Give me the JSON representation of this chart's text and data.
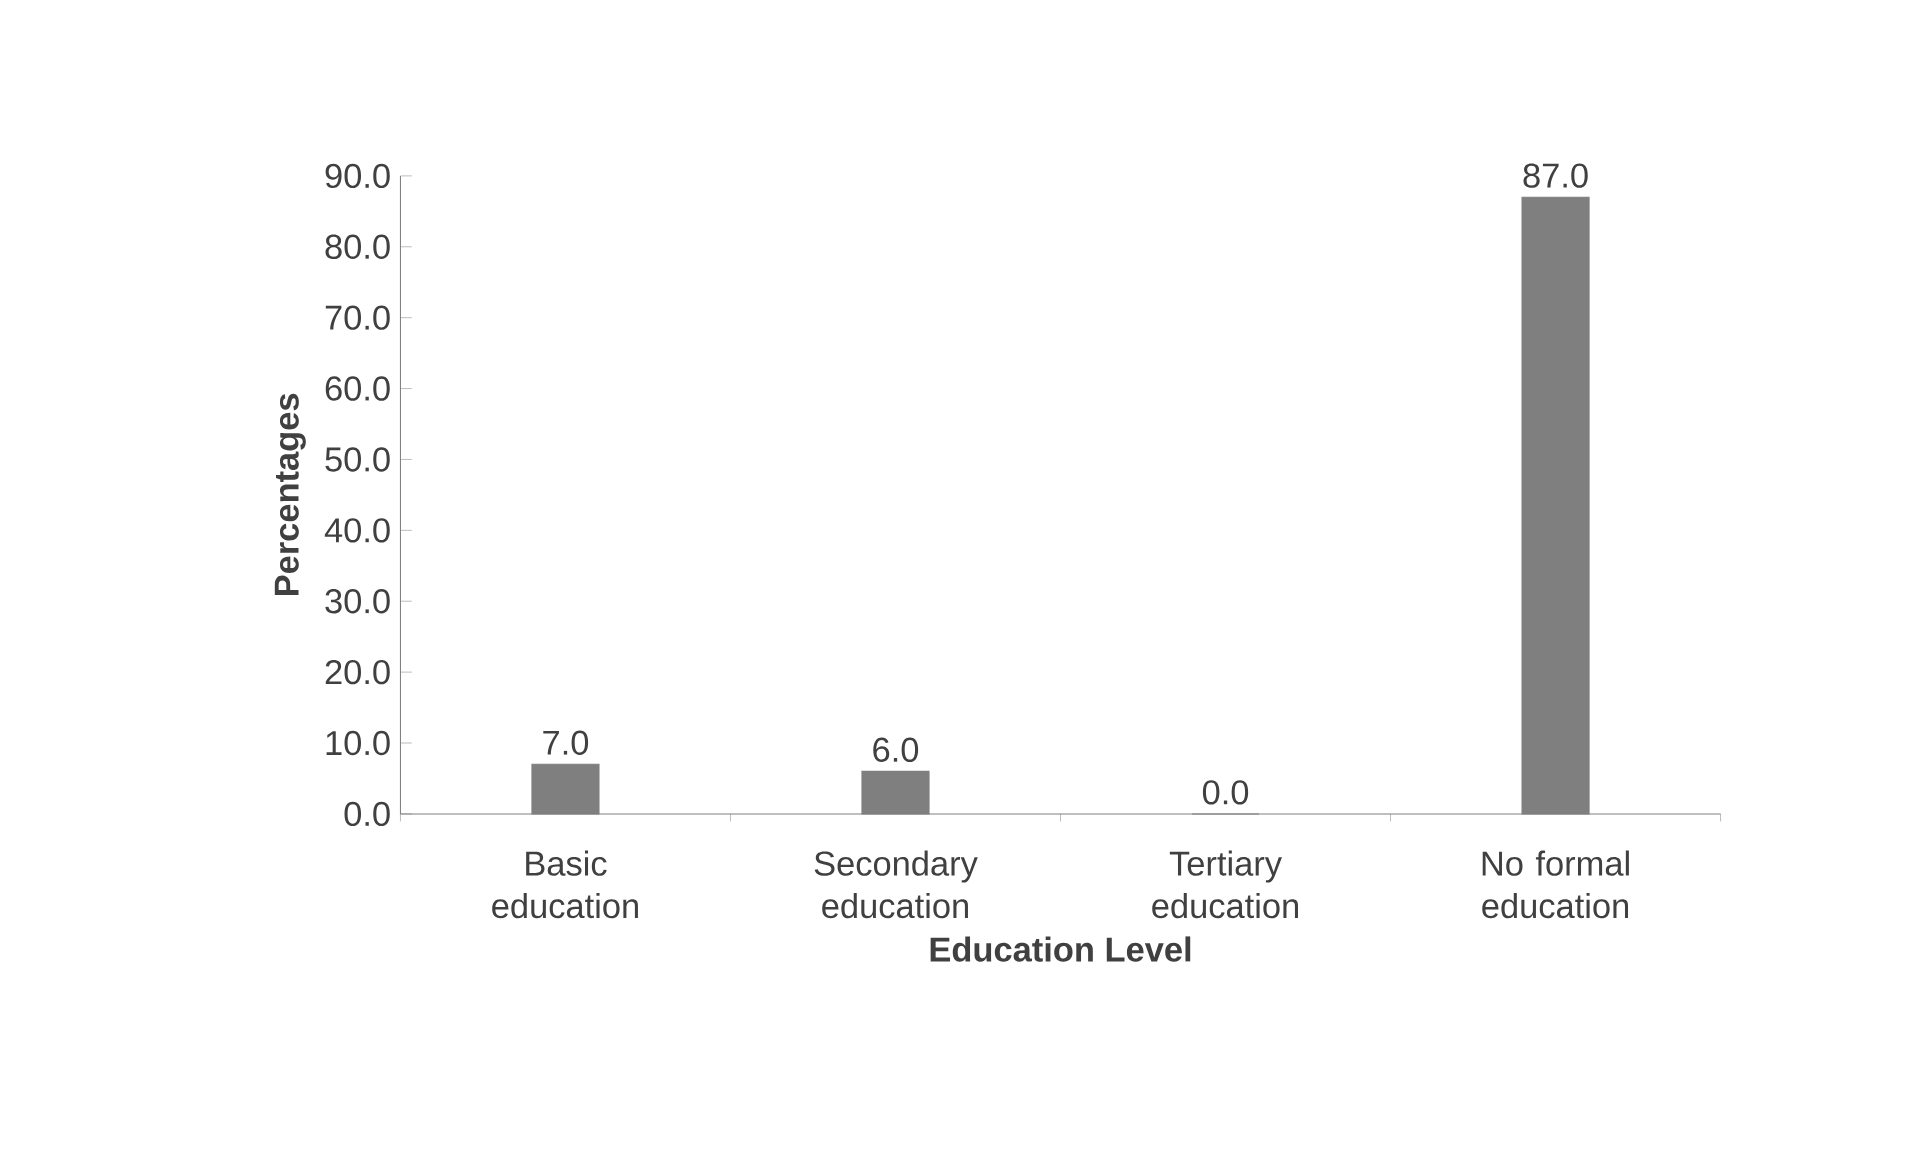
{
  "chart_data": {
    "type": "bar",
    "xlabel": "Education Level",
    "ylabel": "Percentages",
    "categories": [
      "Basic education",
      "Secondary education",
      "Tertiary education",
      "No formal education"
    ],
    "values": [
      7,
      6,
      0,
      87
    ],
    "value_labels": [
      "7.0",
      "6.0",
      "0.0",
      "87.0"
    ],
    "color": "#7f7f7f",
    "ylim": [
      0,
      90
    ],
    "yticks": [
      {
        "value": 0,
        "label": "0.0"
      },
      {
        "value": 10,
        "label": "10.0"
      },
      {
        "value": 20,
        "label": "20.0"
      },
      {
        "value": 30,
        "label": "30.0"
      },
      {
        "value": 40,
        "label": "40.0"
      },
      {
        "value": 50,
        "label": "50.0"
      },
      {
        "value": 60,
        "label": "60.0"
      },
      {
        "value": 70,
        "label": "70.0"
      },
      {
        "value": 80,
        "label": "80.0"
      },
      {
        "value": 90,
        "label": "90.0"
      }
    ],
    "grid": false
  }
}
